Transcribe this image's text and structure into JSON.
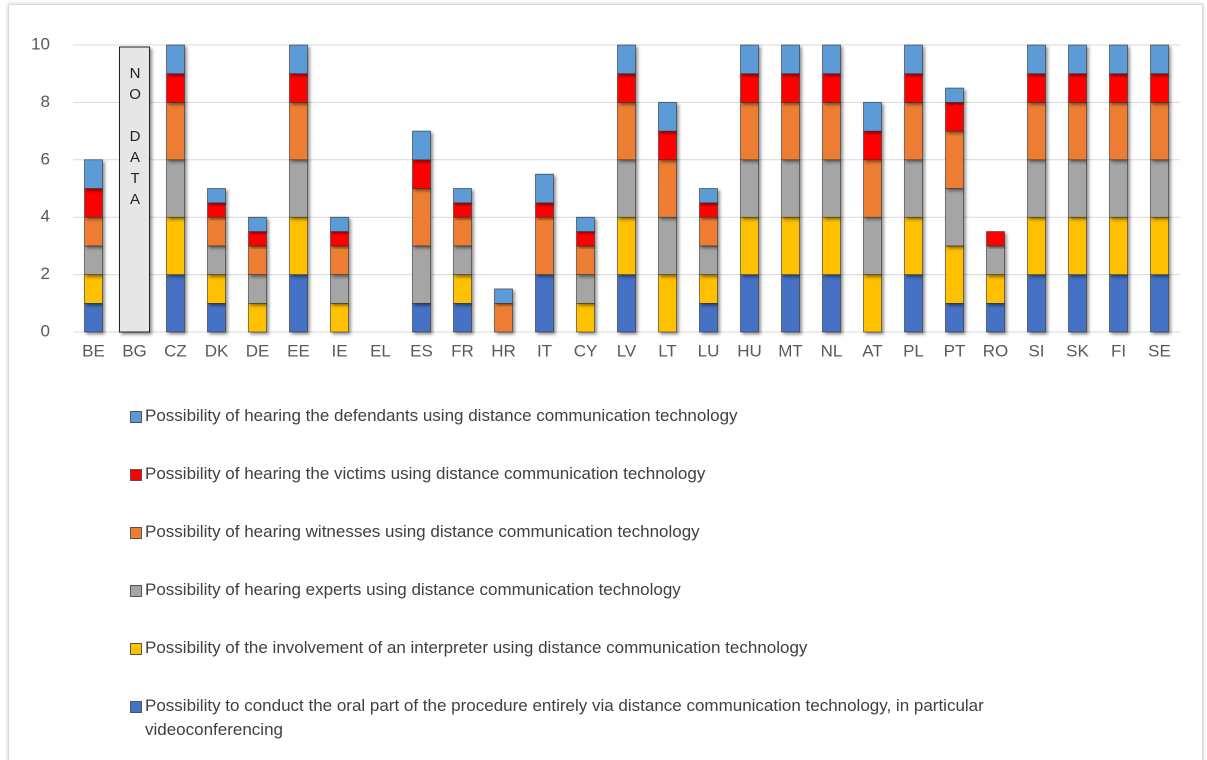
{
  "chart_data": {
    "type": "stacked_bar",
    "categories": [
      "BE",
      "BG",
      "CZ",
      "DK",
      "DE",
      "EE",
      "IE",
      "EL",
      "ES",
      "FR",
      "HR",
      "IT",
      "CY",
      "LV",
      "LT",
      "LU",
      "HU",
      "MT",
      "NL",
      "AT",
      "PL",
      "PT",
      "RO",
      "SI",
      "SK",
      "FI",
      "SE"
    ],
    "annotation": "NO DATA",
    "ylim": [
      0,
      10
    ],
    "yticks": [
      0,
      2,
      4,
      6,
      8,
      10
    ],
    "grid": true,
    "series": [
      {
        "name": "Possibility to conduct the oral part of the procedure entirely via distance communication technology, in particular videoconferencing",
        "color": "#4472c4",
        "values": [
          1,
          null,
          2,
          1,
          0,
          2,
          0,
          0,
          1,
          1,
          0,
          2,
          0,
          2,
          0,
          1,
          2,
          2,
          2,
          0,
          2,
          1,
          1,
          2,
          2,
          2,
          2
        ]
      },
      {
        "name": "Possibility of the involvement of an interpreter using distance communication technology",
        "color": "#ffc000",
        "values": [
          1,
          null,
          2,
          1,
          1,
          2,
          1,
          0,
          0,
          1,
          0,
          0,
          1,
          2,
          2,
          1,
          2,
          2,
          2,
          2,
          2,
          2,
          1,
          2,
          2,
          2,
          2
        ]
      },
      {
        "name": "Possibility of hearing experts using distance communication technology",
        "color": "#a5a5a5",
        "values": [
          1,
          null,
          2,
          1,
          1,
          2,
          1,
          0,
          2,
          1,
          0,
          0,
          1,
          2,
          2,
          1,
          2,
          2,
          2,
          2,
          2,
          2,
          1,
          2,
          2,
          2,
          2
        ]
      },
      {
        "name": "Possibility of hearing witnesses using distance communication technology",
        "color": "#ed7d31",
        "values": [
          1,
          null,
          2,
          1,
          1,
          2,
          1,
          0,
          2,
          1,
          1,
          2,
          1,
          2,
          2,
          1,
          2,
          2,
          2,
          2,
          2,
          2,
          0,
          2,
          2,
          2,
          2
        ]
      },
      {
        "name": "Possibility of hearing the victims using distance communication technology",
        "color": "#ff0000",
        "values": [
          1,
          null,
          1,
          0.5,
          0.5,
          1,
          0.5,
          0,
          1,
          0.5,
          0,
          0.5,
          0.5,
          1,
          1,
          0.5,
          1,
          1,
          1,
          1,
          1,
          1,
          0.5,
          1,
          1,
          1,
          1
        ]
      },
      {
        "name": "Possibility of hearing the defendants using distance communication technology",
        "color": "#5b9bd5",
        "values": [
          1,
          null,
          1,
          0.5,
          0.5,
          1,
          0.5,
          0,
          1,
          0.5,
          0.5,
          1,
          0.5,
          1,
          1,
          0.5,
          1,
          1,
          1,
          1,
          1,
          0.5,
          0,
          1,
          1,
          1,
          1
        ]
      }
    ]
  }
}
